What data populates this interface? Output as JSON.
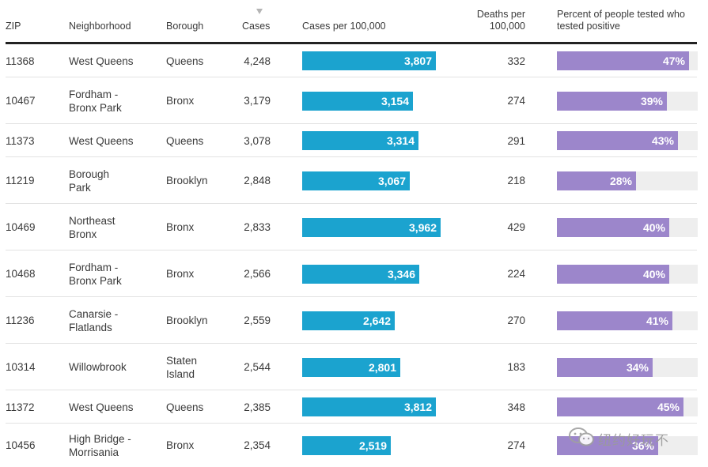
{
  "headers": {
    "zip": "ZIP",
    "neighborhood": "Neighborhood",
    "borough": "Borough",
    "cases": "Cases",
    "cases_per_100k": "Cases per 100,000",
    "deaths_per_100k_line1": "Deaths per",
    "deaths_per_100k_line2": "100,000",
    "pct_positive_line1": "Percent of people tested who",
    "pct_positive_line2": "tested positive"
  },
  "watermark": {
    "text": "纽约好玩不"
  },
  "colors": {
    "cases_bar": "#1ba3cf",
    "pct_bar": "#9c86cb",
    "track": "#eeeeee"
  },
  "chart_data": {
    "type": "table",
    "title": "",
    "sorted_by": "Cases",
    "sort_direction": "descending",
    "columns": [
      "ZIP",
      "Neighborhood",
      "Borough",
      "Cases",
      "Cases per 100,000",
      "Deaths per 100,000",
      "Percent of people tested who tested positive"
    ],
    "cases_per_100k_max": 4200,
    "pct_scale_max": 50,
    "rows": [
      {
        "zip": "11368",
        "neighborhood_l1": "West Queens",
        "neighborhood_l2": "",
        "borough_l1": "Queens",
        "borough_l2": "",
        "cases": "4,248",
        "per100k": 3807,
        "per100k_label": "3,807",
        "deaths": "332",
        "pct": 47,
        "pct_label": "47%"
      },
      {
        "zip": "10467",
        "neighborhood_l1": "Fordham -",
        "neighborhood_l2": "Bronx Park",
        "borough_l1": "Bronx",
        "borough_l2": "",
        "cases": "3,179",
        "per100k": 3154,
        "per100k_label": "3,154",
        "deaths": "274",
        "pct": 39,
        "pct_label": "39%"
      },
      {
        "zip": "11373",
        "neighborhood_l1": "West Queens",
        "neighborhood_l2": "",
        "borough_l1": "Queens",
        "borough_l2": "",
        "cases": "3,078",
        "per100k": 3314,
        "per100k_label": "3,314",
        "deaths": "291",
        "pct": 43,
        "pct_label": "43%"
      },
      {
        "zip": "11219",
        "neighborhood_l1": "Borough",
        "neighborhood_l2": "Park",
        "borough_l1": "Brooklyn",
        "borough_l2": "",
        "cases": "2,848",
        "per100k": 3067,
        "per100k_label": "3,067",
        "deaths": "218",
        "pct": 28,
        "pct_label": "28%"
      },
      {
        "zip": "10469",
        "neighborhood_l1": "Northeast",
        "neighborhood_l2": "Bronx",
        "borough_l1": "Bronx",
        "borough_l2": "",
        "cases": "2,833",
        "per100k": 3962,
        "per100k_label": "3,962",
        "deaths": "429",
        "pct": 40,
        "pct_label": "40%"
      },
      {
        "zip": "10468",
        "neighborhood_l1": "Fordham -",
        "neighborhood_l2": "Bronx Park",
        "borough_l1": "Bronx",
        "borough_l2": "",
        "cases": "2,566",
        "per100k": 3346,
        "per100k_label": "3,346",
        "deaths": "224",
        "pct": 40,
        "pct_label": "40%"
      },
      {
        "zip": "11236",
        "neighborhood_l1": "Canarsie -",
        "neighborhood_l2": "Flatlands",
        "borough_l1": "Brooklyn",
        "borough_l2": "",
        "cases": "2,559",
        "per100k": 2642,
        "per100k_label": "2,642",
        "deaths": "270",
        "pct": 41,
        "pct_label": "41%"
      },
      {
        "zip": "10314",
        "neighborhood_l1": "Willowbrook",
        "neighborhood_l2": "",
        "borough_l1": "Staten",
        "borough_l2": "Island",
        "cases": "2,544",
        "per100k": 2801,
        "per100k_label": "2,801",
        "deaths": "183",
        "pct": 34,
        "pct_label": "34%"
      },
      {
        "zip": "11372",
        "neighborhood_l1": "West Queens",
        "neighborhood_l2": "",
        "borough_l1": "Queens",
        "borough_l2": "",
        "cases": "2,385",
        "per100k": 3812,
        "per100k_label": "3,812",
        "deaths": "348",
        "pct": 45,
        "pct_label": "45%"
      },
      {
        "zip": "10456",
        "neighborhood_l1": "High Bridge -",
        "neighborhood_l2": "Morrisania",
        "borough_l1": "Bronx",
        "borough_l2": "",
        "cases": "2,354",
        "per100k": 2519,
        "per100k_label": "2,519",
        "deaths": "274",
        "pct": 36,
        "pct_label": "36%"
      }
    ]
  }
}
